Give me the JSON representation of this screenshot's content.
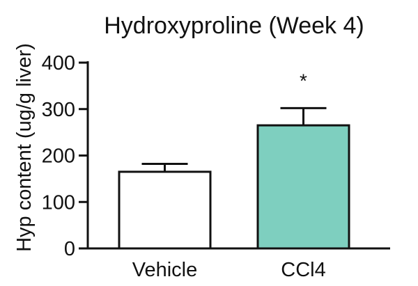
{
  "chart_data": {
    "type": "bar",
    "title": "Hydroxyproline (Week 4)",
    "xlabel": "",
    "ylabel": "Hyp content (ug/g liver)",
    "ylim": [
      0,
      400
    ],
    "yticks": [
      0,
      100,
      200,
      300,
      400
    ],
    "categories": [
      "Vehicle",
      "CCl4"
    ],
    "values": [
      165,
      265
    ],
    "errors": [
      17,
      37
    ],
    "colors": [
      "#ffffff",
      "#7ecfbf"
    ],
    "annotations": [
      "",
      "*"
    ],
    "grid": false,
    "legend": "none"
  }
}
